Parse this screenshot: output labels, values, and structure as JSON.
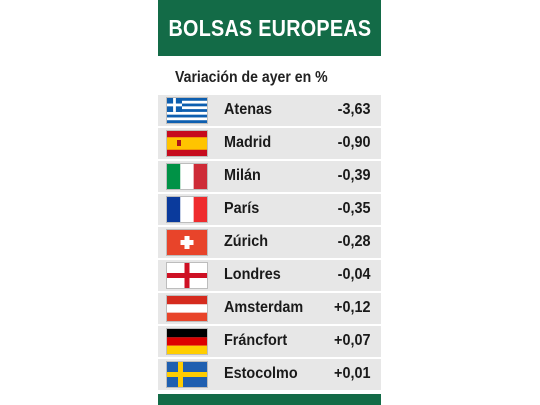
{
  "header": {
    "title": "BOLSAS EUROPEAS"
  },
  "subtitle": "Variación de ayer en %",
  "chart_data": {
    "type": "table",
    "title": "BOLSAS EUROPEAS",
    "subtitle": "Variación de ayer en %",
    "columns": [
      "flag",
      "city",
      "value"
    ],
    "rows": [
      {
        "city": "Atenas",
        "value": "-3,63",
        "flag": "greece-flag-icon"
      },
      {
        "city": "Madrid",
        "value": "-0,90",
        "flag": "spain-flag-icon"
      },
      {
        "city": "Milán",
        "value": "-0,39",
        "flag": "italy-flag-icon"
      },
      {
        "city": "París",
        "value": "-0,35",
        "flag": "france-flag-icon"
      },
      {
        "city": "Zúrich",
        "value": "-0,28",
        "flag": "switzerland-flag-icon"
      },
      {
        "city": "Londres",
        "value": "-0,04",
        "flag": "england-flag-icon"
      },
      {
        "city": "Amsterdam",
        "value": "+0,12",
        "flag": "netherlands-flag-icon"
      },
      {
        "city": "Fráncfort",
        "value": "+0,07",
        "flag": "germany-flag-icon"
      },
      {
        "city": "Estocolmo",
        "value": "+0,01",
        "flag": "sweden-flag-icon"
      }
    ]
  },
  "colors": {
    "header_bg": "#136b47",
    "row_bg": "#e7e7e7",
    "text": "#1a1a1a"
  }
}
